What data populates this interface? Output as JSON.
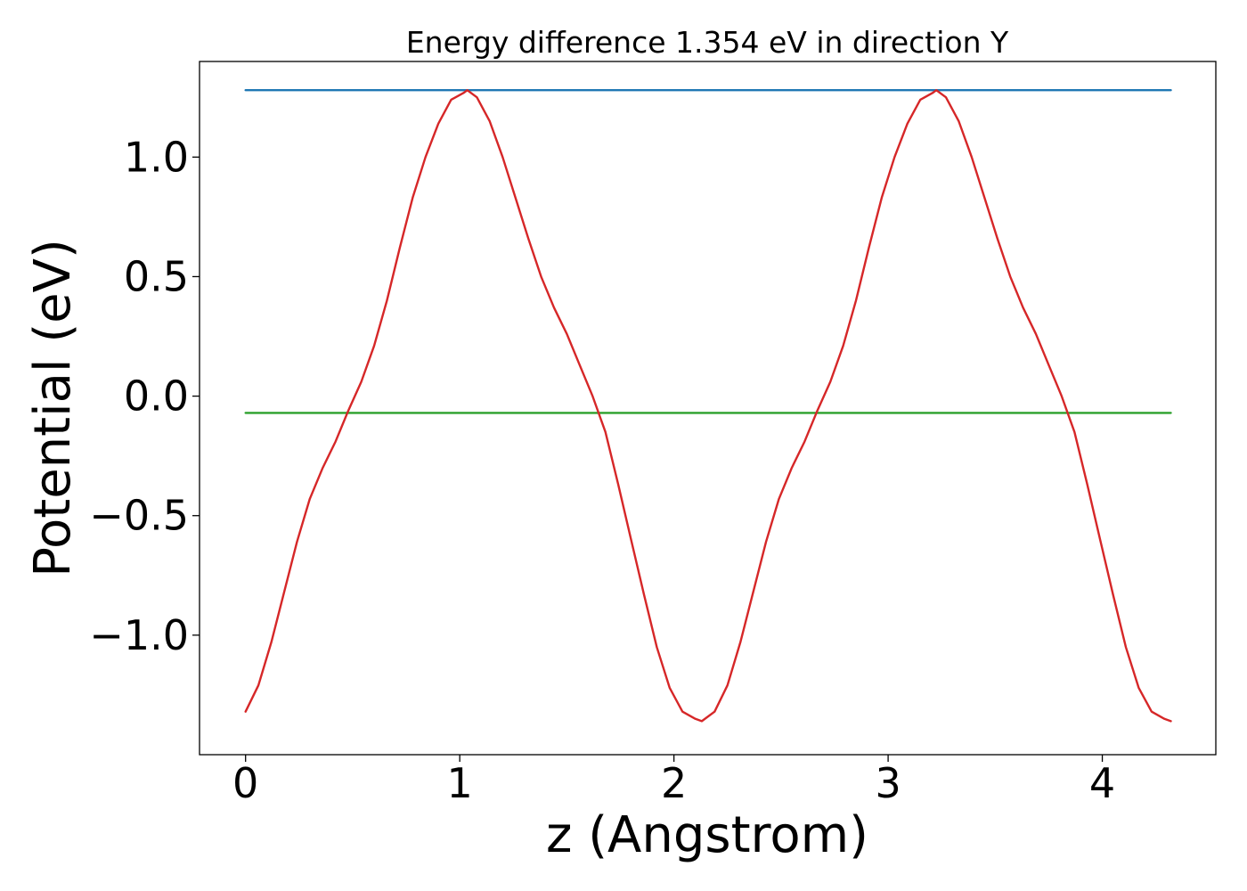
{
  "chart_data": {
    "type": "line",
    "title": "Energy difference 1.354 eV in direction Y",
    "xlabel": "z (Angstrom)",
    "ylabel": "Potential (eV)",
    "xlim": [
      -0.215,
      4.53
    ],
    "ylim": [
      -1.5,
      1.4
    ],
    "xticks": [
      0,
      1,
      2,
      3,
      4
    ],
    "xtick_labels": [
      "0",
      "1",
      "2",
      "3",
      "4"
    ],
    "yticks": [
      -1.0,
      -0.5,
      0.0,
      0.5,
      1.0
    ],
    "ytick_labels": [
      "−1.0",
      "−0.5",
      "0.0",
      "0.5",
      "1.0"
    ],
    "grid": false,
    "series": [
      {
        "color": "#d62728",
        "x": [
          0,
          0.06,
          0.12,
          0.18,
          0.24,
          0.3,
          0.36,
          0.42,
          0.48,
          0.54,
          0.6,
          0.66,
          0.72,
          0.78,
          0.84,
          0.9,
          0.96,
          1.02,
          1.035,
          1.08,
          1.14,
          1.2,
          1.26,
          1.32,
          1.38,
          1.44,
          1.5,
          1.56,
          1.62,
          1.68,
          1.74,
          1.8,
          1.86,
          1.92,
          1.98,
          2.04,
          2.1,
          2.13,
          2.19,
          2.25,
          2.31,
          2.37,
          2.43,
          2.49,
          2.55,
          2.61,
          2.67,
          2.73,
          2.79,
          2.85,
          2.91,
          2.97,
          3.03,
          3.09,
          3.15,
          3.21,
          3.225,
          3.27,
          3.33,
          3.39,
          3.45,
          3.51,
          3.57,
          3.63,
          3.69,
          3.75,
          3.81,
          3.87,
          3.93,
          3.99,
          4.05,
          4.11,
          4.17,
          4.23,
          4.29,
          4.32
        ],
        "y": [
          -1.32,
          -1.21,
          -1.03,
          -0.82,
          -0.61,
          -0.43,
          -0.3,
          -0.19,
          -0.06,
          0.06,
          0.21,
          0.4,
          0.62,
          0.83,
          1.0,
          1.14,
          1.24,
          1.27,
          1.28,
          1.25,
          1.15,
          1.0,
          0.83,
          0.66,
          0.5,
          0.37,
          0.26,
          0.13,
          0.0,
          -0.15,
          -0.37,
          -0.6,
          -0.83,
          -1.05,
          -1.22,
          -1.32,
          -1.35,
          -1.36,
          -1.32,
          -1.21,
          -1.03,
          -0.82,
          -0.61,
          -0.43,
          -0.3,
          -0.19,
          -0.06,
          0.06,
          0.21,
          0.4,
          0.62,
          0.83,
          1.0,
          1.14,
          1.24,
          1.27,
          1.28,
          1.25,
          1.15,
          1.0,
          0.83,
          0.66,
          0.5,
          0.37,
          0.26,
          0.13,
          0.0,
          -0.15,
          -0.37,
          -0.6,
          -0.83,
          -1.05,
          -1.22,
          -1.32,
          -1.35,
          -1.36
        ]
      },
      {
        "color": "#1f77b4",
        "x": [
          0,
          4.32
        ],
        "y": [
          1.28,
          1.28
        ]
      },
      {
        "color": "#2ca02c",
        "x": [
          0,
          4.32
        ],
        "y": [
          -0.07,
          -0.07
        ]
      }
    ]
  }
}
